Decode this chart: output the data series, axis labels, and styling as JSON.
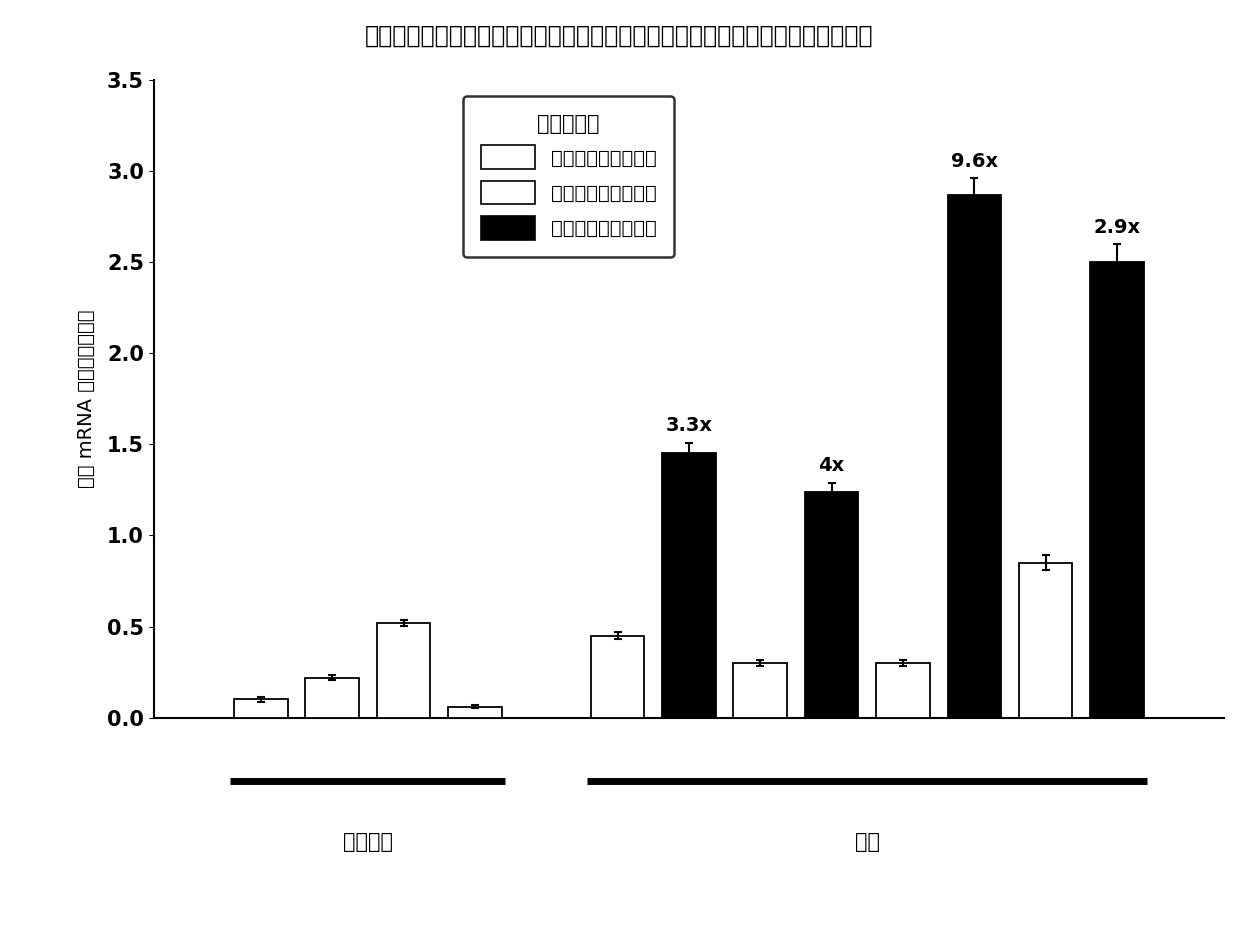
{
  "title": "来自患者和健康对照的正位子宫内膜中以及子宫内膜异位病变中催乳素受体的表达",
  "ylabel": "相对 mRNA 表达比亲环蛋白",
  "legend_title": "催乳素受体",
  "legend_labels": [
    "正位，健康对照组织",
    "来自患者的正位组织",
    "来自患者的异位组织"
  ],
  "group_labels": [
    "健康对照",
    "患者"
  ],
  "ylim": [
    0,
    3.5
  ],
  "yticks": [
    0,
    0.5,
    1.0,
    1.5,
    2.0,
    2.5,
    3.0,
    3.5
  ],
  "positions": [
    0.1,
    0.2,
    0.3,
    0.4,
    0.6,
    0.7,
    0.8,
    0.9,
    1.0,
    1.1,
    1.2,
    1.3
  ],
  "bar_values": [
    0.1,
    0.22,
    0.52,
    0.06,
    0.45,
    1.45,
    0.3,
    1.24,
    0.3,
    2.87,
    0.85,
    2.5
  ],
  "bar_errors": [
    0.015,
    0.015,
    0.015,
    0.008,
    0.02,
    0.06,
    0.015,
    0.05,
    0.015,
    0.09,
    0.04,
    0.1
  ],
  "bar_colors": [
    "white",
    "white",
    "white",
    "white",
    "white",
    "black",
    "white",
    "black",
    "white",
    "black",
    "white",
    "black"
  ],
  "annotations": [
    null,
    null,
    null,
    null,
    null,
    "3.3x",
    null,
    "4x",
    null,
    "9.6x",
    null,
    "2.9x"
  ],
  "bar_width": 0.075,
  "xlim": [
    -0.05,
    1.45
  ],
  "g0_idx": [
    0,
    3
  ],
  "g1_idx": [
    4,
    11
  ],
  "background_color": "white",
  "title_fontsize": 17,
  "axis_fontsize": 14,
  "tick_fontsize": 15,
  "annotation_fontsize": 14,
  "label_fontsize": 15
}
